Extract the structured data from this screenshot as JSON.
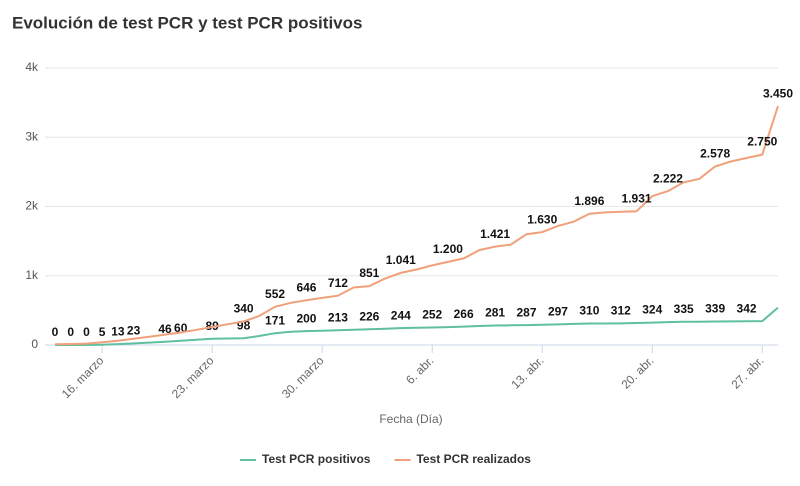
{
  "chart_data": {
    "type": "line",
    "title": "Evolución de test PCR y test PCR positivos",
    "x_label": "Fecha (Día)",
    "categories": [
      null,
      null,
      null,
      "16. marzo",
      null,
      null,
      null,
      null,
      null,
      null,
      "23. marzo",
      null,
      null,
      null,
      null,
      null,
      null,
      "30. marzo",
      null,
      null,
      null,
      null,
      null,
      null,
      "6. abr.",
      null,
      null,
      null,
      null,
      null,
      null,
      "13. abr.",
      null,
      null,
      null,
      null,
      null,
      null,
      "20. abr.",
      null,
      null,
      null,
      null,
      null,
      null,
      "27. abr.",
      null
    ],
    "series": [
      {
        "name": "Test PCR positivos",
        "color": "#5fbf9f",
        "values": [
          0,
          0,
          0,
          5,
          13,
          23,
          35,
          46,
          60,
          75,
          89,
          94,
          98,
          130,
          171,
          190,
          200,
          207,
          213,
          220,
          226,
          235,
          244,
          248,
          252,
          259,
          266,
          274,
          281,
          284,
          287,
          292,
          297,
          304,
          310,
          311,
          312,
          318,
          324,
          330,
          335,
          337,
          339,
          341,
          342,
          345,
          540
        ],
        "value_labels": [
          "0",
          "0",
          "0",
          "5",
          "13",
          "23",
          null,
          "46",
          "60",
          null,
          "89",
          null,
          "98",
          null,
          "171",
          null,
          "200",
          null,
          "213",
          null,
          "226",
          null,
          "244",
          null,
          "252",
          null,
          "266",
          null,
          "281",
          null,
          "287",
          null,
          "297",
          null,
          "310",
          null,
          "312",
          null,
          "324",
          null,
          "335",
          null,
          "339",
          null,
          "342",
          null,
          null
        ]
      },
      {
        "name": "Test PCR realizados",
        "color": "#f0a07a",
        "values": [
          10,
          15,
          20,
          40,
          60,
          90,
          120,
          150,
          180,
          220,
          260,
          300,
          340,
          420,
          552,
          610,
          646,
          680,
          712,
          830,
          851,
          960,
          1041,
          1090,
          1150,
          1200,
          1250,
          1370,
          1421,
          1450,
          1600,
          1630,
          1720,
          1780,
          1896,
          1915,
          1925,
          1931,
          2150,
          2222,
          2350,
          2400,
          2578,
          2650,
          2700,
          2750,
          3450
        ],
        "value_labels": [
          null,
          null,
          null,
          null,
          null,
          null,
          null,
          null,
          null,
          null,
          null,
          null,
          "340",
          null,
          "552",
          null,
          "646",
          null,
          "712",
          null,
          "851",
          null,
          "1.041",
          null,
          null,
          "1.200",
          null,
          null,
          "1.421",
          null,
          null,
          "1.630",
          null,
          null,
          "1.896",
          null,
          null,
          "1.931",
          null,
          "2.222",
          null,
          null,
          "2.578",
          null,
          null,
          "2.750",
          "3.450"
        ]
      }
    ],
    "ylim": [
      0,
      4000
    ],
    "yticks": [
      0,
      {
        "value": 1000,
        "label": "1k"
      },
      {
        "value": 2000,
        "label": "2k"
      },
      {
        "value": 3000,
        "label": "3k"
      },
      {
        "value": 4000,
        "label": "4k"
      }
    ],
    "grid": true,
    "legend": "bottom"
  }
}
